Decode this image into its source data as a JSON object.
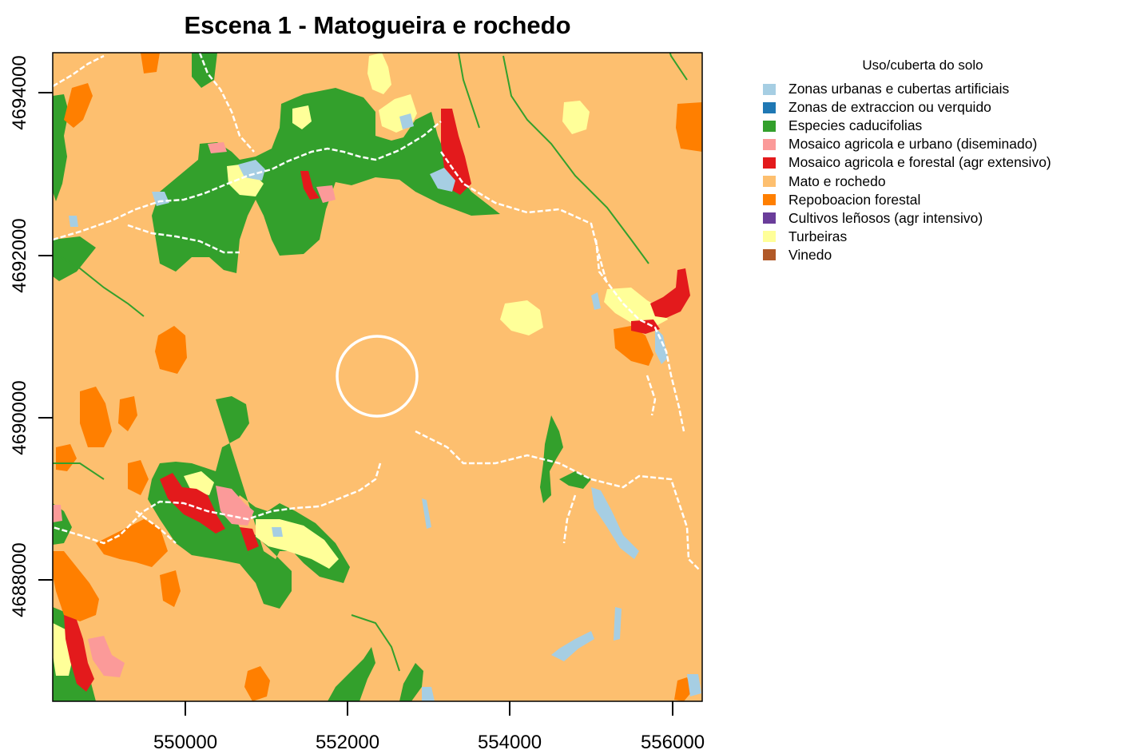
{
  "map": {
    "title": "Escena 1 - Matogueira e rochedo",
    "x_axis": {
      "ticks": [
        "550000",
        "552000",
        "554000",
        "556000"
      ]
    },
    "y_axis": {
      "ticks": [
        "4694000",
        "4692000",
        "4690000",
        "4688000"
      ]
    },
    "background_class": "Mato e rochedo",
    "marker": {
      "shape": "circle",
      "color": "#ffffff"
    }
  },
  "legend": {
    "title": "Uso/cuberta do solo",
    "items": [
      {
        "label": "Zonas urbanas e cubertas artificiais",
        "color": "#a6cee3"
      },
      {
        "label": "Zonas de extraccion ou verquido",
        "color": "#1f78b4"
      },
      {
        "label": "Especies caducifolias",
        "color": "#33a02c"
      },
      {
        "label": "Mosaico agricola e urbano (diseminado)",
        "color": "#fb9a99"
      },
      {
        "label": "Mosaico agricola e forestal (agr extensivo)",
        "color": "#e31a1c"
      },
      {
        "label": "Mato e rochedo",
        "color": "#fdbf6f"
      },
      {
        "label": "Repoboacion forestal",
        "color": "#ff7f00"
      },
      {
        "label": "Cultivos leñosos (agr intensivo)",
        "color": "#6a3d9a"
      },
      {
        "label": "Turbeiras",
        "color": "#ffff99"
      },
      {
        "label": "Vinedo",
        "color": "#b15928"
      }
    ]
  }
}
